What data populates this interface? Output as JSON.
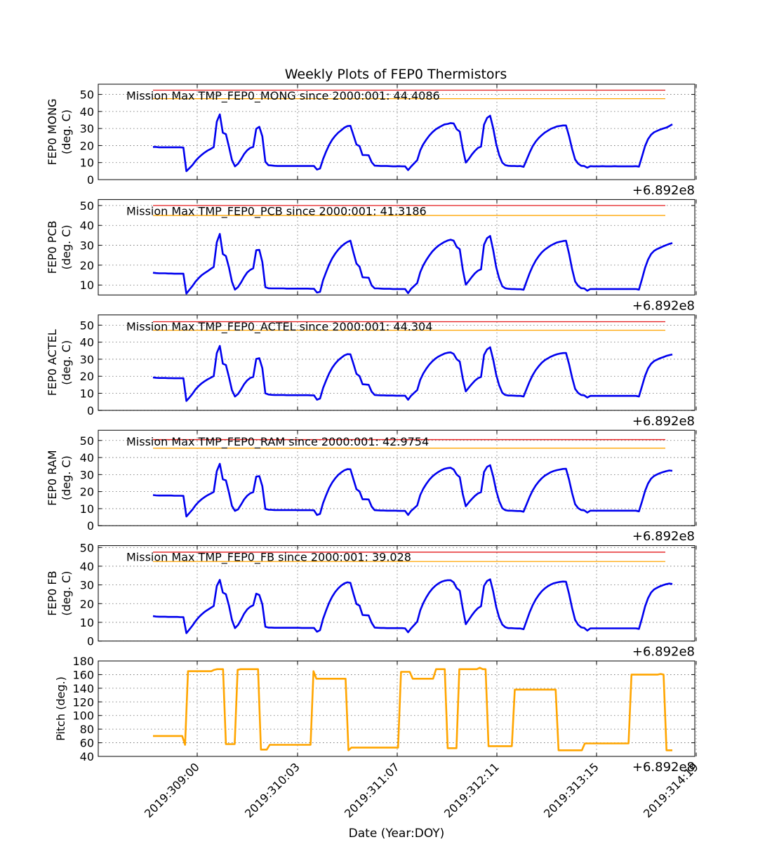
{
  "title": "Weekly Plots of FEP0 Thermistors",
  "chart_data": [
    {
      "type": "line",
      "ylabel": "FEP0 MONG",
      "yunit": "(deg. C)",
      "offset_label": "+6.892e8",
      "annotation": "Mission Max TMP_FEP0_MONG since 2000:001: 44.4086",
      "ylim": [
        0,
        56
      ],
      "yticks": [
        0,
        10,
        20,
        30,
        40,
        50
      ],
      "limit_lines": [
        {
          "name": "red",
          "y": 52.5,
          "color": "#e41a1c"
        },
        {
          "name": "yellow",
          "y": 47.5,
          "color": "#ffa500"
        }
      ],
      "series_color": "#0000ee",
      "y": [
        19.2,
        19.2,
        19.0,
        19.0,
        19.0,
        19.0,
        19.0,
        19.0,
        19.0,
        19.0,
        18.8,
        5.0,
        6.7,
        8.6,
        11.0,
        12.9,
        14.5,
        15.9,
        17.1,
        18.0,
        19.1,
        34.0,
        38.3,
        27.5,
        26.7,
        19.3,
        11.5,
        7.8,
        9.3,
        12.0,
        15.0,
        17.2,
        18.6,
        19.2,
        29.8,
        31.0,
        25.4,
        10.5,
        8.5,
        8.3,
        8.1,
        8.0,
        8.0,
        8.0,
        8.0,
        8.0,
        8.0,
        8.0,
        8.0,
        8.0,
        8.0,
        8.0,
        8.0,
        8.0,
        5.9,
        6.5,
        12.0,
        16.5,
        20.4,
        23.4,
        25.7,
        27.6,
        29.0,
        30.5,
        31.4,
        31.6,
        26.1,
        20.6,
        19.7,
        14.4,
        14.4,
        14.3,
        10.2,
        8.2,
        8.1,
        8.0,
        8.0,
        8.0,
        7.9,
        7.8,
        7.8,
        7.9,
        7.8,
        7.8,
        5.6,
        7.7,
        9.6,
        11.4,
        17.2,
        20.8,
        23.5,
        25.9,
        27.8,
        29.4,
        30.5,
        31.5,
        32.4,
        32.7,
        33.2,
        33.0,
        29.6,
        28.2,
        18.2,
        10.0,
        12.2,
        14.8,
        16.9,
        18.6,
        19.4,
        32.3,
        36.2,
        37.5,
        30.3,
        21.0,
        14.4,
        10.0,
        8.5,
        8.1,
        8.0,
        8.0,
        7.9,
        8.0,
        7.5,
        11.6,
        15.8,
        19.5,
        22.3,
        24.4,
        26.1,
        27.6,
        28.7,
        29.8,
        30.5,
        31.2,
        31.5,
        31.8,
        31.8,
        25.4,
        18.0,
        11.8,
        9.4,
        8.1,
        8.0,
        7.0,
        7.9,
        7.8,
        7.8,
        7.8,
        7.9,
        7.8,
        7.8,
        7.8,
        7.9,
        7.8,
        7.8,
        7.8,
        7.8,
        7.8,
        7.8,
        7.9,
        7.6,
        13.5,
        19.7,
        23.8,
        26.3,
        27.8,
        28.6,
        29.4,
        30.0,
        30.5,
        31.4,
        32.5
      ]
    },
    {
      "type": "line",
      "ylabel": "FEP0 PCB",
      "yunit": "(deg. C)",
      "offset_label": "+6.892e8",
      "annotation": "Mission Max TMP_FEP0_PCB since 2000:001: 41.3186",
      "ylim": [
        5,
        53
      ],
      "yticks": [
        10,
        20,
        30,
        40,
        50
      ],
      "limit_lines": [
        {
          "name": "red",
          "y": 50,
          "color": "#e41a1c"
        },
        {
          "name": "yellow",
          "y": 45,
          "color": "#ffa500"
        }
      ],
      "series_color": "#0000ee",
      "y": [
        16.2,
        16.0,
        15.9,
        15.9,
        15.9,
        15.8,
        15.8,
        15.7,
        15.7,
        15.7,
        15.7,
        5.7,
        7.6,
        9.5,
        11.7,
        13.4,
        14.9,
        16.0,
        17.0,
        18.1,
        19.1,
        31.5,
        35.7,
        25.6,
        24.6,
        18.9,
        11.7,
        7.7,
        9.0,
        11.3,
        14.0,
        16.3,
        17.6,
        18.4,
        27.5,
        27.7,
        21.6,
        8.9,
        8.4,
        8.3,
        8.3,
        8.3,
        8.3,
        8.3,
        8.2,
        8.2,
        8.2,
        8.2,
        8.2,
        8.2,
        8.2,
        8.2,
        8.1,
        8.1,
        6.2,
        6.6,
        12.4,
        16.5,
        20.3,
        23.4,
        25.8,
        27.8,
        29.4,
        30.7,
        31.7,
        32.3,
        26.4,
        20.8,
        19.2,
        13.9,
        13.8,
        13.7,
        9.8,
        8.3,
        8.3,
        8.2,
        8.1,
        8.1,
        8.1,
        8.0,
        8.0,
        8.0,
        8.0,
        8.0,
        5.9,
        8.1,
        9.6,
        11.0,
        16.4,
        19.9,
        22.6,
        24.9,
        26.9,
        28.5,
        29.8,
        30.8,
        31.7,
        32.4,
        32.8,
        32.3,
        29.2,
        28.0,
        17.8,
        10.2,
        12.1,
        14.1,
        15.9,
        17.2,
        17.9,
        30.3,
        33.6,
        34.7,
        27.6,
        19.0,
        13.3,
        9.4,
        8.4,
        8.1,
        8.0,
        8.0,
        7.9,
        7.9,
        7.6,
        11.8,
        15.9,
        19.4,
        22.3,
        24.5,
        26.4,
        27.8,
        28.9,
        29.9,
        30.7,
        31.4,
        31.8,
        32.1,
        32.3,
        25.7,
        18.0,
        11.8,
        9.6,
        8.4,
        8.3,
        7.1,
        8.0,
        8.0,
        8.0,
        8.0,
        8.0,
        8.0,
        8.0,
        8.0,
        8.0,
        8.0,
        8.0,
        8.0,
        8.0,
        8.0,
        8.0,
        8.0,
        7.7,
        12.9,
        18.6,
        22.8,
        25.6,
        27.2,
        28.1,
        28.8,
        29.5,
        30.1,
        30.7,
        31.1
      ]
    },
    {
      "type": "line",
      "ylabel": "FEP0 ACTEL",
      "yunit": "(deg. C)",
      "offset_label": "+6.892e8",
      "annotation": "Mission Max TMP_FEP0_ACTEL since 2000:001: 44.304",
      "ylim": [
        0,
        56
      ],
      "yticks": [
        0,
        10,
        20,
        30,
        40,
        50
      ],
      "limit_lines": [
        {
          "name": "red",
          "y": 52,
          "color": "#e41a1c"
        },
        {
          "name": "yellow",
          "y": 47,
          "color": "#ffa500"
        }
      ],
      "series_color": "#0000ee",
      "y": [
        19.3,
        19.1,
        19.0,
        19.0,
        19.0,
        18.9,
        18.9,
        18.8,
        18.8,
        18.8,
        18.8,
        5.5,
        7.5,
        9.7,
        12.3,
        14.2,
        15.8,
        17.1,
        18.2,
        19.1,
        20.1,
        33.6,
        37.8,
        27.4,
        26.6,
        19.6,
        11.8,
        8.1,
        9.6,
        12.3,
        15.3,
        17.6,
        19.0,
        19.6,
        30.2,
        30.6,
        24.7,
        10.0,
        9.3,
        9.1,
        9.0,
        9.0,
        9.0,
        9.0,
        8.9,
        8.9,
        8.9,
        8.9,
        8.9,
        8.9,
        8.9,
        8.9,
        8.8,
        8.8,
        6.2,
        6.9,
        13.0,
        17.6,
        21.7,
        24.9,
        27.4,
        29.4,
        30.9,
        32.2,
        33.0,
        32.9,
        27.3,
        21.4,
        20.1,
        15.3,
        15.2,
        15.0,
        10.9,
        9.0,
        8.9,
        8.8,
        8.8,
        8.7,
        8.7,
        8.7,
        8.6,
        8.6,
        8.6,
        8.6,
        6.2,
        8.6,
        10.3,
        11.9,
        17.9,
        21.6,
        24.5,
        26.9,
        28.8,
        30.4,
        31.6,
        32.5,
        33.3,
        33.8,
        34.0,
        33.1,
        30.0,
        28.6,
        18.7,
        11.1,
        13.4,
        15.5,
        17.4,
        18.8,
        19.6,
        32.5,
        35.8,
        37.0,
        29.9,
        20.9,
        14.6,
        10.3,
        9.0,
        8.7,
        8.7,
        8.6,
        8.5,
        8.5,
        8.1,
        12.5,
        16.9,
        20.6,
        23.6,
        25.9,
        27.9,
        29.4,
        30.5,
        31.5,
        32.3,
        32.9,
        33.3,
        33.6,
        33.7,
        27.0,
        19.2,
        12.6,
        10.2,
        9.0,
        8.8,
        7.5,
        8.5,
        8.5,
        8.5,
        8.5,
        8.5,
        8.5,
        8.5,
        8.5,
        8.5,
        8.5,
        8.5,
        8.5,
        8.5,
        8.5,
        8.5,
        8.5,
        8.1,
        14.0,
        20.2,
        24.6,
        27.3,
        28.9,
        29.8,
        30.6,
        31.2,
        31.9,
        32.4,
        32.8
      ]
    },
    {
      "type": "line",
      "ylabel": "FEP0 RAM",
      "yunit": "(deg. C)",
      "offset_label": "+6.892e8",
      "annotation": "Mission Max TMP_FEP0_RAM since 2000:001: 42.9754",
      "ylim": [
        0,
        56
      ],
      "yticks": [
        0,
        10,
        20,
        30,
        40,
        50
      ],
      "limit_lines": [
        {
          "name": "red",
          "y": 50.5,
          "color": "#e41a1c"
        },
        {
          "name": "yellow",
          "y": 45.5,
          "color": "#ffa500"
        }
      ],
      "series_color": "#0000ee",
      "y": [
        18.0,
        17.8,
        17.7,
        17.7,
        17.7,
        17.7,
        17.7,
        17.6,
        17.6,
        17.6,
        17.5,
        5.4,
        7.4,
        9.5,
        12.0,
        13.9,
        15.5,
        16.8,
        17.9,
        18.8,
        19.8,
        32.0,
        36.3,
        27.2,
        26.6,
        19.5,
        11.6,
        8.7,
        9.6,
        12.4,
        15.4,
        17.6,
        19.0,
        19.7,
        28.8,
        29.1,
        23.2,
        9.9,
        9.4,
        9.3,
        9.2,
        9.2,
        9.2,
        9.2,
        9.2,
        9.2,
        9.2,
        9.2,
        9.1,
        9.1,
        9.1,
        9.1,
        9.1,
        9.0,
        6.3,
        6.9,
        13.2,
        17.9,
        22.1,
        25.3,
        27.8,
        29.8,
        31.3,
        32.5,
        33.2,
        33.1,
        27.2,
        21.4,
        20.1,
        15.5,
        15.5,
        15.4,
        11.2,
        9.1,
        9.0,
        8.9,
        8.9,
        8.8,
        8.8,
        8.8,
        8.8,
        8.7,
        8.7,
        8.7,
        6.3,
        8.7,
        10.3,
        11.9,
        18.0,
        21.7,
        24.6,
        27.0,
        28.9,
        30.4,
        31.6,
        32.6,
        33.4,
        33.8,
        34.0,
        33.0,
        30.0,
        28.5,
        18.5,
        11.4,
        13.7,
        15.7,
        17.5,
        18.9,
        19.7,
        31.5,
        34.5,
        35.5,
        29.0,
        20.6,
        14.4,
        10.3,
        9.1,
        8.8,
        8.8,
        8.7,
        8.6,
        8.6,
        8.2,
        12.5,
        16.9,
        20.6,
        23.6,
        25.9,
        27.8,
        29.3,
        30.4,
        31.4,
        32.1,
        32.6,
        33.0,
        33.3,
        33.4,
        26.9,
        19.1,
        12.6,
        10.3,
        9.2,
        9.0,
        7.7,
        8.8,
        8.8,
        8.8,
        8.8,
        8.8,
        8.8,
        8.8,
        8.8,
        8.8,
        8.8,
        8.8,
        8.8,
        8.8,
        8.8,
        8.8,
        8.8,
        8.4,
        14.1,
        20.3,
        24.8,
        27.6,
        29.2,
        30.1,
        30.9,
        31.5,
        32.0,
        32.4,
        32.2
      ]
    },
    {
      "type": "line",
      "ylabel": "FEP0 FB",
      "yunit": "(deg. C)",
      "offset_label": "+6.892e8",
      "annotation": "Mission Max TMP_FEP0_FB since 2000:001: 39.028",
      "ylim": [
        0,
        51
      ],
      "yticks": [
        0,
        10,
        20,
        30,
        40,
        50
      ],
      "limit_lines": [
        {
          "name": "red",
          "y": 47.5,
          "color": "#e41a1c"
        },
        {
          "name": "yellow",
          "y": 42.5,
          "color": "#ffa500"
        }
      ],
      "series_color": "#0000ee",
      "y": [
        13.3,
        13.1,
        13.0,
        13.0,
        13.0,
        12.9,
        12.9,
        12.9,
        12.9,
        12.8,
        12.8,
        4.2,
        6.2,
        8.3,
        10.6,
        12.6,
        14.2,
        15.6,
        16.7,
        17.7,
        18.7,
        29.4,
        32.7,
        25.9,
        25.0,
        19.0,
        11.3,
        6.9,
        8.6,
        11.4,
        14.6,
        16.9,
        18.3,
        19.1,
        25.3,
        24.6,
        19.6,
        7.6,
        7.2,
        7.2,
        7.1,
        7.1,
        7.1,
        7.1,
        7.1,
        7.1,
        7.1,
        7.1,
        7.1,
        7.0,
        7.0,
        7.0,
        7.0,
        7.0,
        5.0,
        5.8,
        11.8,
        16.4,
        20.5,
        23.7,
        26.2,
        28.2,
        29.7,
        30.8,
        31.4,
        31.1,
        25.3,
        19.8,
        18.9,
        13.9,
        13.8,
        13.7,
        9.7,
        7.2,
        7.1,
        7.0,
        7.0,
        6.9,
        6.9,
        6.9,
        6.9,
        6.9,
        6.9,
        6.8,
        4.7,
        6.8,
        8.6,
        10.4,
        16.4,
        20.3,
        23.4,
        26.0,
        28.0,
        29.6,
        30.8,
        31.7,
        32.2,
        32.5,
        32.5,
        31.4,
        28.3,
        26.9,
        17.4,
        9.0,
        11.4,
        13.8,
        15.9,
        17.6,
        18.6,
        29.5,
        32.1,
        33.0,
        26.6,
        18.3,
        12.5,
        8.8,
        7.4,
        6.9,
        6.9,
        6.8,
        6.7,
        6.7,
        6.3,
        10.8,
        15.3,
        19.1,
        22.2,
        24.6,
        26.6,
        28.1,
        29.3,
        30.2,
        30.9,
        31.3,
        31.6,
        31.8,
        31.7,
        25.1,
        17.6,
        11.3,
        8.7,
        7.3,
        7.0,
        5.6,
        6.8,
        6.8,
        6.8,
        6.8,
        6.8,
        6.8,
        6.8,
        6.8,
        6.8,
        6.8,
        6.8,
        6.8,
        6.8,
        6.8,
        6.8,
        6.8,
        6.5,
        12.1,
        18.4,
        22.9,
        25.9,
        27.6,
        28.5,
        29.3,
        29.9,
        30.4,
        30.7,
        30.5
      ]
    },
    {
      "type": "line",
      "ylabel": "Pitch (deg.)",
      "yunit": "",
      "offset_label": "+6.892e8",
      "annotation": "",
      "ylim": [
        40,
        180
      ],
      "yticks": [
        40,
        60,
        80,
        100,
        120,
        140,
        160,
        180
      ],
      "limit_lines": [],
      "series_color": "#ffa500",
      "xlabel": "Date (Year:DOY)",
      "xticks": [
        "2019:309:00",
        "2019:310:03",
        "2019:311:07",
        "2019:312:11",
        "2019:313:15",
        "2019:314:19"
      ],
      "y": [
        70,
        70,
        70,
        70,
        70,
        70,
        70,
        70,
        70,
        70,
        70,
        57,
        165,
        165,
        165,
        165,
        165,
        165,
        165,
        165,
        165,
        167,
        168,
        168,
        168,
        58,
        58,
        58,
        58,
        167,
        168,
        168,
        168,
        168,
        168,
        168,
        168,
        50,
        50,
        50,
        57,
        57,
        57,
        57,
        57,
        57,
        57,
        57,
        57,
        57,
        57,
        57,
        57,
        57,
        57,
        165,
        154,
        154,
        154,
        154,
        154,
        154,
        154,
        154,
        154,
        154,
        154,
        49,
        53,
        53,
        53,
        53,
        53,
        53,
        53,
        53,
        53,
        53,
        53,
        53,
        53,
        53,
        53,
        53,
        53,
        164,
        164,
        164,
        164,
        154,
        154,
        154,
        154,
        154,
        154,
        154,
        154,
        168,
        168,
        168,
        168,
        52,
        52,
        52,
        52,
        168,
        168,
        168,
        168,
        168,
        168,
        168,
        170,
        168,
        168,
        55,
        55,
        55,
        55,
        55,
        55,
        55,
        55,
        55,
        138,
        138,
        138,
        138,
        138,
        138,
        138,
        138,
        138,
        138,
        138,
        138,
        138,
        138,
        138,
        49,
        49,
        49,
        49,
        49,
        49,
        49,
        49,
        49,
        59,
        59,
        59,
        59,
        59,
        59,
        59,
        59,
        59,
        59,
        59,
        59,
        59,
        59,
        59,
        59,
        160,
        160,
        160,
        160,
        160,
        160,
        160,
        160,
        160,
        160,
        161,
        160,
        49,
        49,
        49
      ]
    }
  ]
}
